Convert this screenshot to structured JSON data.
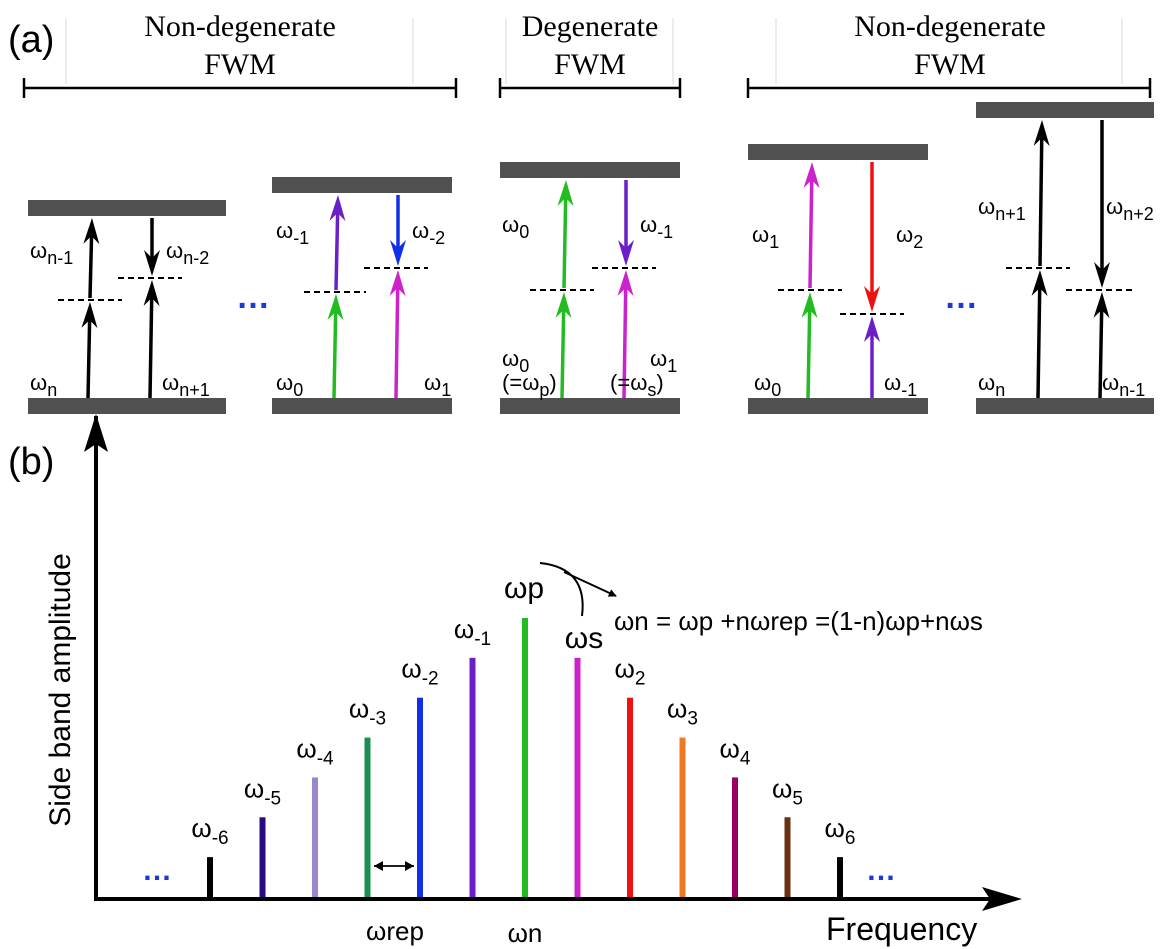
{
  "panel_a": {
    "label": "(a)",
    "groups": [
      {
        "line1": "Non-degenerate",
        "line2": "FWM"
      },
      {
        "line1": "Degenerate",
        "line2": "FWM"
      },
      {
        "line1": "Non-degenerate",
        "line2": "FWM"
      }
    ],
    "ellipsis": "…",
    "diagrams": [
      {
        "labels": {
          "bl": "ωn",
          "br": "ωn+1",
          "ul": "ωn-1",
          "ur": "ωn-2"
        },
        "colors": {
          "left_lower": "#000000",
          "left_upper": "#000000",
          "right_lower": "#000000",
          "right_upper": "#000000"
        }
      },
      {
        "labels": {
          "bl": "ω0",
          "br": "ω1",
          "ul": "ω-1",
          "ur": "ω-2"
        },
        "colors": {
          "left_lower": "#22bb22",
          "left_upper": "#6a1fc8",
          "right_lower": "#cc22cc",
          "right_upper": "#1030e8"
        }
      },
      {
        "labels": {
          "bl": "ω0",
          "br": "ω1",
          "bl2": "(=ωp)",
          "br2": "(=ωs)",
          "ul": "ω0",
          "ur": "ω-1"
        },
        "colors": {
          "left_lower": "#22bb22",
          "left_upper": "#22bb22",
          "right_lower": "#cc22cc",
          "right_upper": "#6a1fc8"
        }
      },
      {
        "labels": {
          "bl": "ω0",
          "br": "ω-1",
          "ul": "ω1",
          "ur": "ω2"
        },
        "colors": {
          "left_lower": "#22bb22",
          "left_upper": "#cc22cc",
          "right_lower": "#6a1fc8",
          "right_upper": "#ee1111"
        }
      },
      {
        "labels": {
          "bl": "ωn",
          "br": "ωn-1",
          "ul": "ωn+1",
          "ur": "ωn+2"
        },
        "colors": {
          "left_lower": "#000000",
          "left_upper": "#000000",
          "right_lower": "#000000",
          "right_upper": "#000000"
        }
      }
    ]
  },
  "panel_b": {
    "label": "(b)",
    "ylabel": "Side band amplitude",
    "xlabel": "Frequency",
    "rep_label": "ωrep",
    "center_label": "ωn",
    "pump_label": "ωp",
    "signal_label": "ωs",
    "equation": "ωn = ωp +nωrep =(1-n)ωp+nωs",
    "ellipsis": "…"
  },
  "chart_data": {
    "type": "bar",
    "categories": [
      "ω-6",
      "ω-5",
      "ω-4",
      "ω-3",
      "ω-2",
      "ω-1",
      "ωp",
      "ωs",
      "ω2",
      "ω3",
      "ω4",
      "ω5",
      "ω6"
    ],
    "values": [
      1,
      2,
      3,
      4,
      5,
      6,
      7,
      6,
      5,
      4,
      3,
      2,
      1
    ],
    "colors": [
      "#000000",
      "#2a0a80",
      "#9988cc",
      "#1a9050",
      "#1030e8",
      "#6a1fc8",
      "#22bb22",
      "#cc22cc",
      "#ee1111",
      "#f07820",
      "#990066",
      "#6a3010",
      "#000000"
    ],
    "ylim": [
      0,
      7
    ]
  }
}
